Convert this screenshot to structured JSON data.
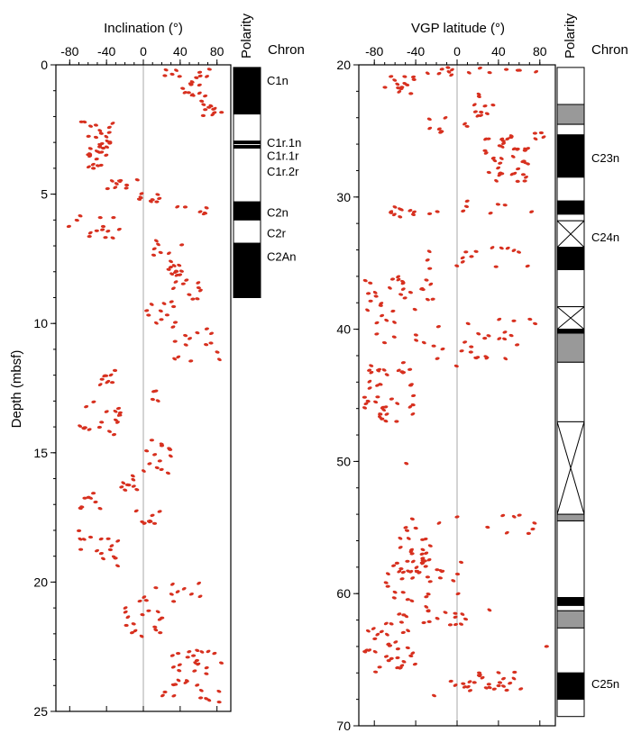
{
  "colors": {
    "points": "#d7301f",
    "zero_line": "#aaaaaa",
    "normal": "#000000",
    "reversed": "#ffffff",
    "uncertain": "#999999",
    "axes": "#000000"
  },
  "chart_data": [
    {
      "type": "scatter",
      "title": "",
      "xlabel": "Inclination (°)",
      "ylabel": "Depth (mbsf)",
      "xlim": [
        -95,
        95
      ],
      "ylim": [
        0,
        25
      ],
      "y_inverted": true,
      "x_ticks": [
        "-80",
        "-40",
        "0",
        "40",
        "80"
      ],
      "y_ticks": [
        "0",
        "5",
        "10",
        "15",
        "20",
        "25"
      ],
      "zero_line": true,
      "polarity_header": "Polarity",
      "chron_header": "Chron",
      "polarity_column": [
        {
          "top": 0.1,
          "bottom": 1.9,
          "state": "normal"
        },
        {
          "top": 1.9,
          "bottom": 2.95,
          "state": "reversed"
        },
        {
          "top": 2.95,
          "bottom": 3.05,
          "state": "normal"
        },
        {
          "top": 3.05,
          "bottom": 3.12,
          "state": "reversed"
        },
        {
          "top": 3.12,
          "bottom": 3.22,
          "state": "normal"
        },
        {
          "top": 3.22,
          "bottom": 5.3,
          "state": "reversed"
        },
        {
          "top": 5.3,
          "bottom": 6.0,
          "state": "normal"
        },
        {
          "top": 6.0,
          "bottom": 6.9,
          "state": "reversed"
        },
        {
          "top": 6.9,
          "bottom": 9.0,
          "state": "normal"
        }
      ],
      "chrons": [
        {
          "label": "C1n",
          "depth": 0.6
        },
        {
          "label": "C1r.1n",
          "depth": 3.0
        },
        {
          "label": "C1r.1r",
          "depth": 3.5
        },
        {
          "label": "C1r.2r",
          "depth": 4.1
        },
        {
          "label": "C2n",
          "depth": 5.7
        },
        {
          "label": "C2r",
          "depth": 6.5
        },
        {
          "label": "C2An",
          "depth": 7.4
        }
      ],
      "point_clusters": [
        {
          "depth_range": [
            0.1,
            0.5
          ],
          "inc_range": [
            10,
            80
          ],
          "n": 10
        },
        {
          "depth_range": [
            0.5,
            1.2
          ],
          "inc_range": [
            40,
            70
          ],
          "n": 10
        },
        {
          "depth_range": [
            1.2,
            2.0
          ],
          "inc_range": [
            60,
            85
          ],
          "n": 12
        },
        {
          "depth_range": [
            2.2,
            2.9
          ],
          "inc_range": [
            -80,
            -30
          ],
          "n": 12
        },
        {
          "depth_range": [
            2.9,
            3.3
          ],
          "inc_range": [
            -50,
            -30
          ],
          "n": 8
        },
        {
          "depth_range": [
            3.1,
            4.2
          ],
          "inc_range": [
            -60,
            -40
          ],
          "n": 14
        },
        {
          "depth_range": [
            4.3,
            4.8
          ],
          "inc_range": [
            -40,
            -5
          ],
          "n": 9
        },
        {
          "depth_range": [
            4.9,
            5.3
          ],
          "inc_range": [
            -5,
            20
          ],
          "n": 8
        },
        {
          "depth_range": [
            5.4,
            5.8
          ],
          "inc_range": [
            30,
            75
          ],
          "n": 6
        },
        {
          "depth_range": [
            5.8,
            6.7
          ],
          "inc_range": [
            -85,
            -20
          ],
          "n": 14
        },
        {
          "depth_range": [
            6.8,
            8.0
          ],
          "inc_range": [
            10,
            50
          ],
          "n": 14
        },
        {
          "depth_range": [
            8.0,
            9.5
          ],
          "inc_range": [
            30,
            65
          ],
          "n": 16
        },
        {
          "depth_range": [
            9.2,
            10.2
          ],
          "inc_range": [
            0,
            40
          ],
          "n": 10
        },
        {
          "depth_range": [
            10.2,
            11.5
          ],
          "inc_range": [
            20,
            85
          ],
          "n": 14
        },
        {
          "depth_range": [
            11.8,
            12.4
          ],
          "inc_range": [
            -50,
            -30
          ],
          "n": 9
        },
        {
          "depth_range": [
            12.6,
            13.0
          ],
          "inc_range": [
            10,
            20
          ],
          "n": 4
        },
        {
          "depth_range": [
            13.0,
            14.3
          ],
          "inc_range": [
            -70,
            -20
          ],
          "n": 18
        },
        {
          "depth_range": [
            14.5,
            15.8
          ],
          "inc_range": [
            0,
            30
          ],
          "n": 14
        },
        {
          "depth_range": [
            15.8,
            16.5
          ],
          "inc_range": [
            -25,
            -5
          ],
          "n": 9
        },
        {
          "depth_range": [
            16.5,
            17.2
          ],
          "inc_range": [
            -70,
            -40
          ],
          "n": 8
        },
        {
          "depth_range": [
            17.2,
            17.8
          ],
          "inc_range": [
            -10,
            20
          ],
          "n": 8
        },
        {
          "depth_range": [
            18.0,
            19.5
          ],
          "inc_range": [
            -70,
            -20
          ],
          "n": 16
        },
        {
          "depth_range": [
            20.0,
            20.8
          ],
          "inc_range": [
            -10,
            70
          ],
          "n": 12
        },
        {
          "depth_range": [
            21.0,
            22.3
          ],
          "inc_range": [
            -20,
            25
          ],
          "n": 16
        },
        {
          "depth_range": [
            22.6,
            24.7
          ],
          "inc_range": [
            20,
            85
          ],
          "n": 34
        }
      ]
    },
    {
      "type": "scatter",
      "title": "",
      "xlabel": "VGP latitude (°)",
      "ylabel": "",
      "xlim": [
        -95,
        95
      ],
      "ylim": [
        20,
        70
      ],
      "y_inverted": true,
      "x_ticks": [
        "-80",
        "-40",
        "0",
        "40",
        "80"
      ],
      "y_ticks": [
        "20",
        "30",
        "40",
        "50",
        "60",
        "70"
      ],
      "zero_line": true,
      "polarity_header": "Polarity",
      "chron_header": "Chron",
      "polarity_column": [
        {
          "top": 20.2,
          "bottom": 23.0,
          "state": "reversed"
        },
        {
          "top": 23.0,
          "bottom": 24.5,
          "state": "uncertain"
        },
        {
          "top": 24.5,
          "bottom": 25.3,
          "state": "reversed"
        },
        {
          "top": 25.3,
          "bottom": 28.5,
          "state": "normal"
        },
        {
          "top": 28.5,
          "bottom": 30.3,
          "state": "reversed"
        },
        {
          "top": 30.3,
          "bottom": 31.3,
          "state": "normal"
        },
        {
          "top": 31.3,
          "bottom": 31.8,
          "state": "reversed"
        },
        {
          "top": 31.8,
          "bottom": 33.8,
          "state": "gap"
        },
        {
          "top": 33.8,
          "bottom": 35.5,
          "state": "normal"
        },
        {
          "top": 35.5,
          "bottom": 38.3,
          "state": "reversed"
        },
        {
          "top": 38.3,
          "bottom": 40.0,
          "state": "gap"
        },
        {
          "top": 40.0,
          "bottom": 40.3,
          "state": "normal"
        },
        {
          "top": 40.3,
          "bottom": 42.5,
          "state": "uncertain"
        },
        {
          "top": 42.5,
          "bottom": 47.0,
          "state": "reversed"
        },
        {
          "top": 47.0,
          "bottom": 54.0,
          "state": "gap"
        },
        {
          "top": 54.0,
          "bottom": 54.5,
          "state": "uncertain"
        },
        {
          "top": 54.5,
          "bottom": 60.3,
          "state": "reversed"
        },
        {
          "top": 60.3,
          "bottom": 60.9,
          "state": "normal"
        },
        {
          "top": 60.9,
          "bottom": 61.3,
          "state": "reversed"
        },
        {
          "top": 61.3,
          "bottom": 62.6,
          "state": "uncertain"
        },
        {
          "top": 62.6,
          "bottom": 66.0,
          "state": "reversed"
        },
        {
          "top": 66.0,
          "bottom": 68.0,
          "state": "normal"
        },
        {
          "top": 68.0,
          "bottom": 69.3,
          "state": "reversed"
        }
      ],
      "chrons": [
        {
          "label": "C23n",
          "depth": 27.0
        },
        {
          "label": "C24n",
          "depth": 33.0
        },
        {
          "label": "C25n",
          "depth": 66.8
        }
      ],
      "point_clusters": [
        {
          "depth_range": [
            20.1,
            20.8
          ],
          "vgp_range": [
            -40,
            15
          ],
          "n": 8
        },
        {
          "depth_range": [
            20.2,
            20.6
          ],
          "vgp_range": [
            20,
            80
          ],
          "n": 6
        },
        {
          "depth_range": [
            20.8,
            22.3
          ],
          "vgp_range": [
            -70,
            -40
          ],
          "n": 14
        },
        {
          "depth_range": [
            22.0,
            24.0
          ],
          "vgp_range": [
            10,
            40
          ],
          "n": 10
        },
        {
          "depth_range": [
            24.0,
            25.2
          ],
          "vgp_range": [
            -40,
            15
          ],
          "n": 8
        },
        {
          "depth_range": [
            25.3,
            29.0
          ],
          "vgp_range": [
            25,
            70
          ],
          "n": 40
        },
        {
          "depth_range": [
            25.0,
            26.0
          ],
          "vgp_range": [
            70,
            90
          ],
          "n": 4
        },
        {
          "depth_range": [
            30.3,
            31.3
          ],
          "vgp_range": [
            -65,
            80
          ],
          "n": 14
        },
        {
          "depth_range": [
            31.0,
            31.6
          ],
          "vgp_range": [
            -65,
            -40
          ],
          "n": 5
        },
        {
          "depth_range": [
            33.8,
            35.5
          ],
          "vgp_range": [
            -30,
            70
          ],
          "n": 16
        },
        {
          "depth_range": [
            35.8,
            39.6
          ],
          "vgp_range": [
            -90,
            -50
          ],
          "n": 22
        },
        {
          "depth_range": [
            36.0,
            38.5
          ],
          "vgp_range": [
            -45,
            -20
          ],
          "n": 8
        },
        {
          "depth_range": [
            37.5,
            40.0
          ],
          "vgp_range": [
            40,
            80
          ],
          "n": 4
        },
        {
          "depth_range": [
            39.5,
            42.8
          ],
          "vgp_range": [
            -80,
            60
          ],
          "n": 30
        },
        {
          "depth_range": [
            42.5,
            47.0
          ],
          "vgp_range": [
            -90,
            -40
          ],
          "n": 40
        },
        {
          "depth_range": [
            50.0,
            50.5
          ],
          "vgp_range": [
            -50,
            -48
          ],
          "n": 1
        },
        {
          "depth_range": [
            54.0,
            55.5
          ],
          "vgp_range": [
            -65,
            80
          ],
          "n": 14
        },
        {
          "depth_range": [
            55.5,
            58.5
          ],
          "vgp_range": [
            -55,
            -25
          ],
          "n": 24
        },
        {
          "depth_range": [
            57.5,
            60.2
          ],
          "vgp_range": [
            -70,
            5
          ],
          "n": 26
        },
        {
          "depth_range": [
            60.2,
            62.6
          ],
          "vgp_range": [
            -70,
            10
          ],
          "n": 24
        },
        {
          "depth_range": [
            62.5,
            66.0
          ],
          "vgp_range": [
            -90,
            -40
          ],
          "n": 30
        },
        {
          "depth_range": [
            61.0,
            61.3
          ],
          "vgp_range": [
            28,
            32
          ],
          "n": 1
        },
        {
          "depth_range": [
            64.0,
            64.5
          ],
          "vgp_range": [
            86,
            90
          ],
          "n": 1
        },
        {
          "depth_range": [
            65.8,
            67.5
          ],
          "vgp_range": [
            5,
            70
          ],
          "n": 24
        },
        {
          "depth_range": [
            66.5,
            67.9
          ],
          "vgp_range": [
            -40,
            0
          ],
          "n": 3
        }
      ]
    }
  ]
}
